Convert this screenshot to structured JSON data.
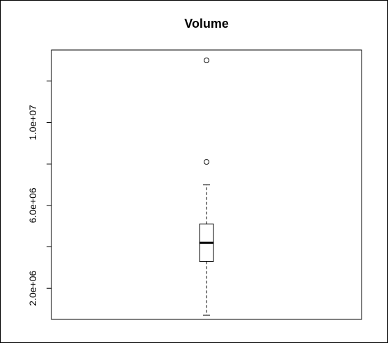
{
  "chart_data": {
    "type": "boxplot",
    "title": "Volume",
    "xlabel": "",
    "ylabel": "",
    "ylim": [
      500000,
      13500000
    ],
    "y_ticks": [
      {
        "value": 2000000,
        "label": "2.0e+06"
      },
      {
        "value": 4000000,
        "label": ""
      },
      {
        "value": 6000000,
        "label": "6.0e+06"
      },
      {
        "value": 8000000,
        "label": ""
      },
      {
        "value": 10000000,
        "label": "1.0e+07"
      },
      {
        "value": 12000000,
        "label": ""
      }
    ],
    "box": {
      "whisker_low": 700000,
      "q1": 3300000,
      "median": 4200000,
      "q3": 5100000,
      "whisker_high": 7000000
    },
    "outliers": [
      8100000,
      13000000
    ],
    "grid": false
  },
  "colors": {
    "axis": "#000000",
    "box_fill": "#ffffff",
    "stroke": "#000000"
  }
}
